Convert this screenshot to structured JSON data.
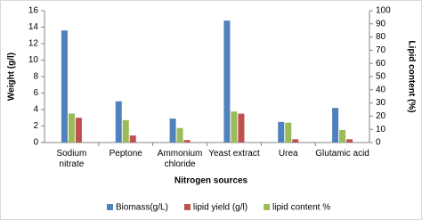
{
  "chart_data": {
    "type": "bar",
    "categories": [
      "Sodium\nnitrate",
      "Peptone",
      "Ammonium\nchloride",
      "Yeast extract",
      "Urea",
      "Glutamic acid"
    ],
    "x_label": "Nitrogen sources",
    "y_label": "Weight (g/l)",
    "y2_label": "Lipid content (%)",
    "ylim": [
      0,
      16
    ],
    "yticks": [
      0,
      2,
      4,
      6,
      8,
      10,
      12,
      14,
      16
    ],
    "y2lim": [
      0,
      100
    ],
    "y2ticks": [
      0,
      10,
      20,
      30,
      40,
      50,
      60,
      70,
      80,
      90,
      100
    ],
    "legend": "bottom",
    "series": [
      {
        "name": "Biomass(g/L)",
        "color": "#4f81bd",
        "values": [
          13.6,
          5.0,
          2.9,
          14.8,
          2.5,
          4.2
        ]
      },
      {
        "name": "lipid yield (g/l)",
        "color": "#c0504d",
        "values": [
          3.0,
          0.85,
          0.3,
          3.5,
          0.4,
          0.4
        ]
      },
      {
        "name": "lipid content %",
        "color": "#9bbb59",
        "axis": "y2",
        "values": [
          22,
          17,
          11,
          23.5,
          15,
          9.5
        ]
      }
    ]
  }
}
